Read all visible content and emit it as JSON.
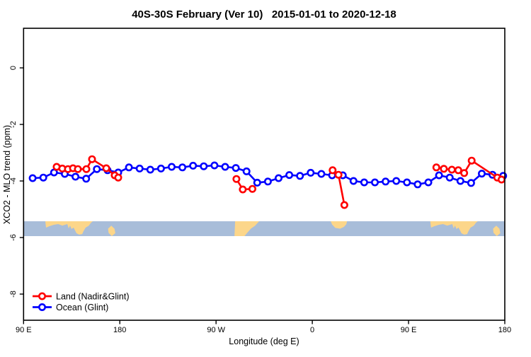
{
  "chart": {
    "title": "40S-30S February (Ver 10)   2015-01-01 to 2020-12-18",
    "xlabel": "Longitude (deg E)",
    "ylabel": "XCO2 - MLO trend (ppm)",
    "colors": {
      "land_series": "#ff0000",
      "ocean_series": "#0000ff",
      "map_ocean": "#a8bdd9",
      "map_land": "#fcd68a",
      "axis": "#000000",
      "background": "#ffffff"
    },
    "legend": [
      {
        "label": "Land (Nadir&Glint)",
        "color": "#ff0000"
      },
      {
        "label": "Ocean (Glint)",
        "color": "#0000ff"
      }
    ]
  },
  "chart_data": {
    "type": "line",
    "title": "40S-30S February (Ver 10)   2015-01-01 to 2020-12-18",
    "xlabel": "Longitude (deg E)",
    "ylabel": "XCO2 - MLO trend (ppm)",
    "x_axis": {
      "note": "axis starts at 90E and wraps eastward 450 degrees to 180",
      "ticks": [
        {
          "d": 0,
          "label": "90 E"
        },
        {
          "d": 90,
          "label": "180"
        },
        {
          "d": 180,
          "label": "90 W"
        },
        {
          "d": 270,
          "label": "0"
        },
        {
          "d": 360,
          "label": "90 E"
        },
        {
          "d": 450,
          "label": "180"
        }
      ],
      "range": [
        0,
        450
      ]
    },
    "y_axis": {
      "ticks": [
        {
          "v": 0,
          "label": "0"
        },
        {
          "v": -2,
          "label": "-2"
        },
        {
          "v": -4,
          "label": "-4"
        },
        {
          "v": -6,
          "label": "-6"
        },
        {
          "v": -8,
          "label": "-8"
        }
      ],
      "range": [
        -8.9,
        1.2
      ]
    },
    "series": [
      {
        "name": "Ocean (Glint)",
        "color": "#0000ff",
        "segments": [
          [
            [
              8.5,
              -3.9
            ],
            [
              18.5,
              -3.88
            ],
            [
              28.5,
              -3.7
            ],
            [
              38.5,
              -3.75
            ],
            [
              48.5,
              -3.85
            ],
            [
              58.5,
              -3.92
            ],
            [
              68.5,
              -3.58
            ],
            [
              78.5,
              -3.62
            ],
            [
              88.5,
              -3.7
            ],
            [
              98.5,
              -3.52
            ],
            [
              108.5,
              -3.56
            ],
            [
              118.5,
              -3.6
            ],
            [
              128.5,
              -3.56
            ],
            [
              138.5,
              -3.5
            ],
            [
              148.5,
              -3.52
            ],
            [
              158.5,
              -3.46
            ],
            [
              168.5,
              -3.48
            ],
            [
              178.5,
              -3.45
            ],
            [
              188.5,
              -3.5
            ],
            [
              198.5,
              -3.54
            ],
            [
              208.5,
              -3.66
            ],
            [
              218.5,
              -4.06
            ],
            [
              228.5,
              -4.02
            ],
            [
              238.5,
              -3.9
            ],
            [
              248.5,
              -3.79
            ],
            [
              258.5,
              -3.82
            ],
            [
              268.5,
              -3.71
            ],
            [
              278.5,
              -3.75
            ],
            [
              288.5,
              -3.8
            ],
            [
              298.5,
              -3.8
            ],
            [
              308.5,
              -4.0
            ],
            [
              318.5,
              -4.05
            ],
            [
              328.5,
              -4.05
            ],
            [
              338.5,
              -4.02
            ],
            [
              348.5,
              -4.0
            ],
            [
              358.5,
              -4.05
            ],
            [
              368.5,
              -4.12
            ],
            [
              378.5,
              -4.05
            ],
            [
              388.5,
              -3.8
            ],
            [
              398.5,
              -3.88
            ],
            [
              408.5,
              -4.0
            ],
            [
              418.5,
              -4.07
            ],
            [
              428.5,
              -3.74
            ],
            [
              438.5,
              -3.78
            ],
            [
              448.5,
              -3.82
            ]
          ]
        ]
      },
      {
        "name": "Land (Nadir&Glint)",
        "color": "#ff0000",
        "segments": [
          [
            [
              30.9,
              -3.5
            ],
            [
              36.2,
              -3.56
            ],
            [
              41.5,
              -3.58
            ],
            [
              46.2,
              -3.55
            ],
            [
              50.8,
              -3.58
            ],
            [
              58.7,
              -3.58
            ],
            [
              64,
              -3.23
            ],
            [
              77.3,
              -3.55
            ],
            [
              85.2,
              -3.8
            ],
            [
              88.5,
              -3.88
            ]
          ],
          [
            [
              199,
              -3.93
            ],
            [
              205,
              -4.3
            ],
            [
              214,
              -4.28
            ]
          ],
          [
            [
              289,
              -3.62
            ],
            [
              294.5,
              -3.78
            ],
            [
              300,
              -4.85
            ]
          ],
          [
            [
              386,
              -3.52
            ],
            [
              393,
              -3.57
            ],
            [
              400.5,
              -3.6
            ],
            [
              406.5,
              -3.62
            ],
            [
              412,
              -3.72
            ],
            [
              419,
              -3.28
            ],
            [
              443,
              -3.88
            ],
            [
              447,
              -3.95
            ]
          ]
        ]
      }
    ],
    "map_band": {
      "value_top": -5.425,
      "value_bottom": -5.95,
      "ocean_color": "#a8bdd9",
      "land_color": "#fcd68a",
      "land_shapes": [
        {
          "name": "australia",
          "offsets": [
            0,
            360
          ],
          "points": [
            [
              20.3,
              0
            ],
            [
              64.7,
              0
            ],
            [
              63,
              0.1
            ],
            [
              61,
              0.3
            ],
            [
              58,
              0.43
            ],
            [
              56,
              0.67
            ],
            [
              54.8,
              0.86
            ],
            [
              52,
              0.9
            ],
            [
              49.5,
              0.81
            ],
            [
              46.8,
              0.43
            ],
            [
              44.8,
              0.52
            ],
            [
              43.5,
              0.29
            ],
            [
              42.2,
              0.48
            ],
            [
              40.9,
              0.19
            ],
            [
              36.2,
              0.29
            ],
            [
              32.3,
              0.19
            ],
            [
              28.3,
              0.24
            ],
            [
              24.3,
              0.33
            ],
            [
              21,
              0.43
            ]
          ]
        },
        {
          "name": "new-zealand",
          "offsets": [
            0,
            360
          ],
          "points": [
            [
              79,
              0.5
            ],
            [
              82,
              0.3
            ],
            [
              85,
              0.5
            ],
            [
              85.8,
              0.8
            ],
            [
              82.5,
              1
            ],
            [
              79.5,
              0.78
            ]
          ]
        },
        {
          "name": "south-america",
          "offsets": [
            0
          ],
          "points": [
            [
              197.8,
              0
            ],
            [
              220.3,
              0
            ],
            [
              216.5,
              0.3
            ],
            [
              212.5,
              0.5
            ],
            [
              209.5,
              0.75
            ],
            [
              206.6,
              1
            ],
            [
              197.2,
              1
            ]
          ]
        },
        {
          "name": "south-africa",
          "offsets": [
            0
          ],
          "points": [
            [
              287.2,
              0
            ],
            [
              302.5,
              0
            ],
            [
              301.8,
              0.2
            ],
            [
              299.5,
              0.38
            ],
            [
              296,
              0.5
            ],
            [
              291.5,
              0.45
            ],
            [
              288.5,
              0.22
            ]
          ]
        }
      ]
    },
    "legend_position": "bottom-left",
    "grid": false
  }
}
